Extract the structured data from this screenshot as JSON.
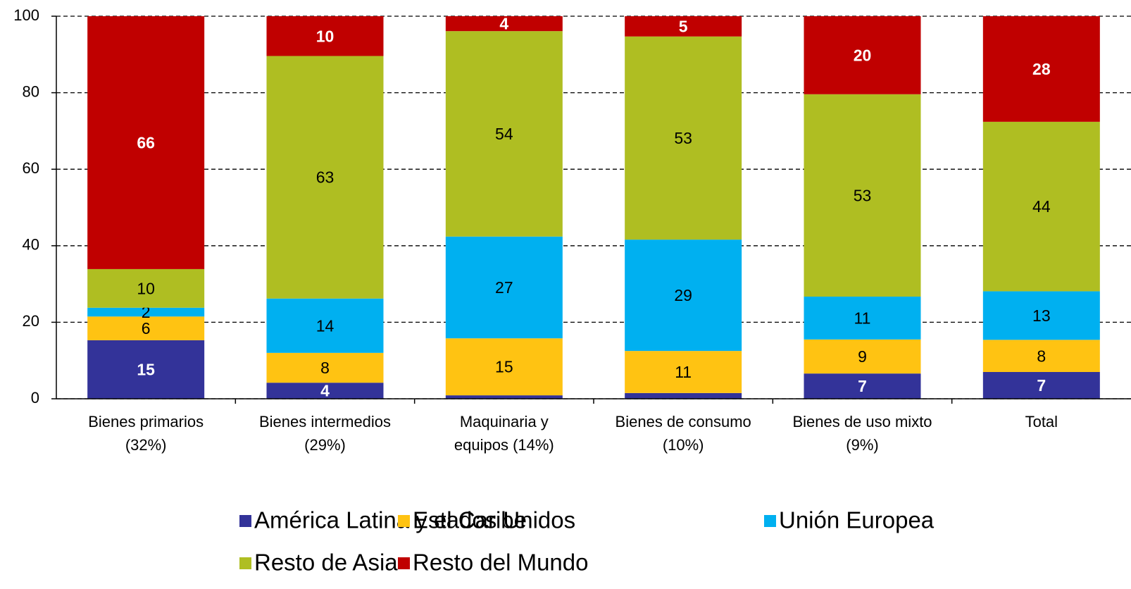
{
  "chart_data": {
    "type": "stacked_bar",
    "categories": [
      [
        "Bienes primarios",
        "(32%)"
      ],
      [
        "Bienes intermedios",
        "(29%)"
      ],
      [
        "Maquinaria y",
        "equipos (14%)"
      ],
      [
        "Bienes de consumo",
        "(10%)"
      ],
      [
        "Bienes de uso mixto",
        "(9%)"
      ],
      [
        "Total"
      ]
    ],
    "series": [
      {
        "name": "América Latina y el Caribe",
        "color": "#333399",
        "label_color": "#ffffff",
        "label_bold": true,
        "values": [
          15.3,
          4.2,
          0.9,
          1.5,
          6.6,
          7.0
        ],
        "value_labels": [
          "15",
          "4",
          null,
          null,
          "7",
          "7"
        ]
      },
      {
        "name": "Estados Unidos",
        "color": "#ffc312",
        "label_color": "#000000",
        "label_bold": false,
        "values": [
          6.2,
          7.8,
          14.9,
          11.0,
          8.9,
          8.4
        ],
        "value_labels": [
          "6",
          "8",
          "15",
          "11",
          "9",
          "8"
        ]
      },
      {
        "name": "Unión Europea",
        "color": "#00b0f0",
        "label_color": "#000000",
        "label_bold": false,
        "values": [
          2.3,
          14.2,
          26.6,
          29.1,
          11.2,
          12.7
        ],
        "value_labels": [
          "2",
          "14",
          "27",
          "29",
          "11",
          "13"
        ]
      },
      {
        "name": "Resto de Asia",
        "color": "#afbe22",
        "label_color": "#000000",
        "label_bold": false,
        "values": [
          10.1,
          63.4,
          53.7,
          53.1,
          52.9,
          44.3
        ],
        "value_labels": [
          "10",
          "63",
          "54",
          "53",
          "53",
          "44"
        ]
      },
      {
        "name": "Resto del Mundo",
        "color": "#c00000",
        "label_color": "#ffffff",
        "label_bold": true,
        "values": [
          66.1,
          10.4,
          3.9,
          5.3,
          20.4,
          27.6
        ],
        "value_labels": [
          "66",
          "10",
          "4",
          "5",
          "20",
          "28"
        ]
      }
    ],
    "ylim": [
      0,
      100
    ],
    "yticks": [
      0,
      20,
      40,
      60,
      80,
      100
    ],
    "grid": true,
    "legend": "bottom"
  }
}
